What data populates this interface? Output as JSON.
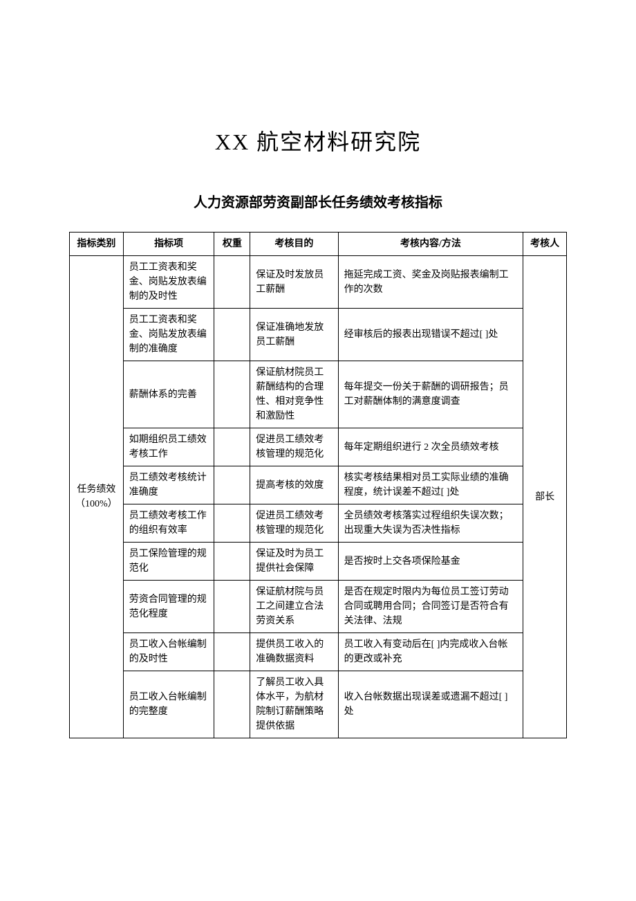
{
  "title": "XX 航空材料研究院",
  "subtitle": "人力资源部劳资副部长任务绩效考核指标",
  "headers": {
    "category": "指标类别",
    "item": "指标项",
    "weight": "权重",
    "purpose": "考核目的",
    "content": "考核内容/方法",
    "assessor": "考核人"
  },
  "category_label": "任务绩效（100%）",
  "assessor_label": "部长",
  "rows": [
    {
      "item": "员工工资表和奖金、岗贴发放表编制的及时性",
      "weight": "",
      "purpose": "保证及时发放员工薪酬",
      "content": "拖延完成工资、奖金及岗贴报表编制工作的次数"
    },
    {
      "item": "员工工资表和奖金、岗贴发放表编制的准确度",
      "weight": "",
      "purpose": "保证准确地发放员工薪酬",
      "content": "经审核后的报表出现错误不超过[ ]处"
    },
    {
      "item": "薪酬体系的完善",
      "weight": "",
      "purpose": "保证航材院员工薪酬结构的合理性、相对竞争性和激励性",
      "content": "每年提交一份关于薪酬的调研报告；员工对薪酬体制的满意度调查"
    },
    {
      "item": "如期组织员工绩效考核工作",
      "weight": "",
      "purpose": "促进员工绩效考核管理的规范化",
      "content": "每年定期组织进行 2 次全员绩效考核"
    },
    {
      "item": "员工绩效考核统计准确度",
      "weight": "",
      "purpose": "提高考核的效度",
      "content": "核实考核结果相对员工实际业绩的准确程度，统计误差不超过[ ]处"
    },
    {
      "item": "员工绩效考核工作的组织有效率",
      "weight": "",
      "purpose": "促进员工绩效考核管理的规范化",
      "content": "全员绩效考核落实过程组织失误次数；出现重大失误为否决性指标"
    },
    {
      "item": "员工保险管理的规范化",
      "weight": "",
      "purpose": "保证及时为员工提供社会保障",
      "content": "是否按时上交各项保险基金"
    },
    {
      "item": "劳资合同管理的规范化程度",
      "weight": "",
      "purpose": "保证航材院与员工之间建立合法劳资关系",
      "content": "是否在规定时限内为每位员工签订劳动合同或聘用合同；合同签订是否符合有关法律、法规"
    },
    {
      "item": "员工收入台帐编制的及时性",
      "weight": "",
      "purpose": "提供员工收入的准确数据资料",
      "content": "员工收入有变动后在[ ]内完成收入台帐的更改或补充"
    },
    {
      "item": "员工收入台帐编制的完整度",
      "weight": "",
      "purpose": "了解员工收入具体水平，为航材院制订薪酬策略提供依据",
      "content": "收入台帐数据出现误差或遗漏不超过[  ]处"
    }
  ]
}
